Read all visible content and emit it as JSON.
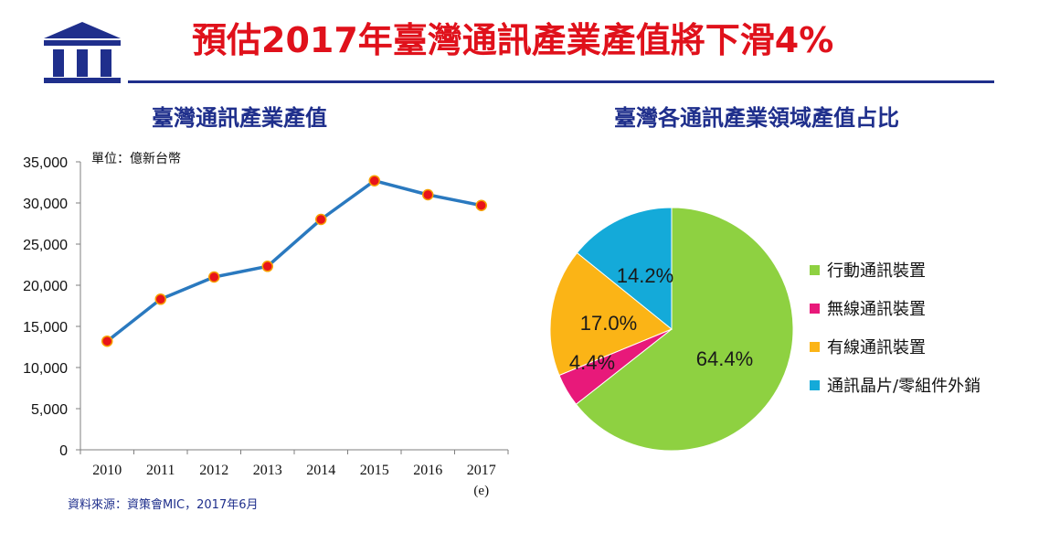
{
  "header": {
    "title": "預估2017年臺灣通訊產業產值將下滑4%"
  },
  "colors": {
    "title_red": "#e0111b",
    "navy": "#1f2f8c",
    "line_blue": "#2a79bf",
    "marker_red": "#e8141a",
    "marker_ring": "#f6a000"
  },
  "line_chart": {
    "title": "臺灣通訊產業產值",
    "unit_label": "單位：億新台幣",
    "sub_label_2017": "(e)"
  },
  "pie_chart": {
    "title": "臺灣各通訊產業領域產值占比"
  },
  "source": "資料來源：資策會MIC，2017年6月",
  "chart_data": [
    {
      "type": "line",
      "title": "臺灣通訊產業產值",
      "x": [
        "2010",
        "2011",
        "2012",
        "2013",
        "2014",
        "2015",
        "2016",
        "2017"
      ],
      "series": [
        {
          "values": [
            13200,
            18300,
            21000,
            22300,
            28000,
            32700,
            31000,
            29700
          ]
        }
      ],
      "ylim": [
        0,
        35000
      ],
      "yticks": [
        "0",
        "5,000",
        "10,000",
        "15,000",
        "20,000",
        "25,000",
        "30,000",
        "35,000"
      ],
      "grid": false
    },
    {
      "type": "pie",
      "title": "臺灣各通訊產業領域產值占比",
      "labels": [
        "行動通訊裝置",
        "無線通訊裝置",
        "有線通訊裝置",
        "通訊晶片/零組件外銷"
      ],
      "values": [
        64.4,
        4.4,
        17.0,
        14.2
      ],
      "value_labels": [
        "64.4%",
        "4.4%",
        "17.0%",
        "14.2%"
      ],
      "colors": [
        "#8ed141",
        "#e8197a",
        "#fbb416",
        "#14aad9"
      ],
      "legend": "right"
    }
  ]
}
